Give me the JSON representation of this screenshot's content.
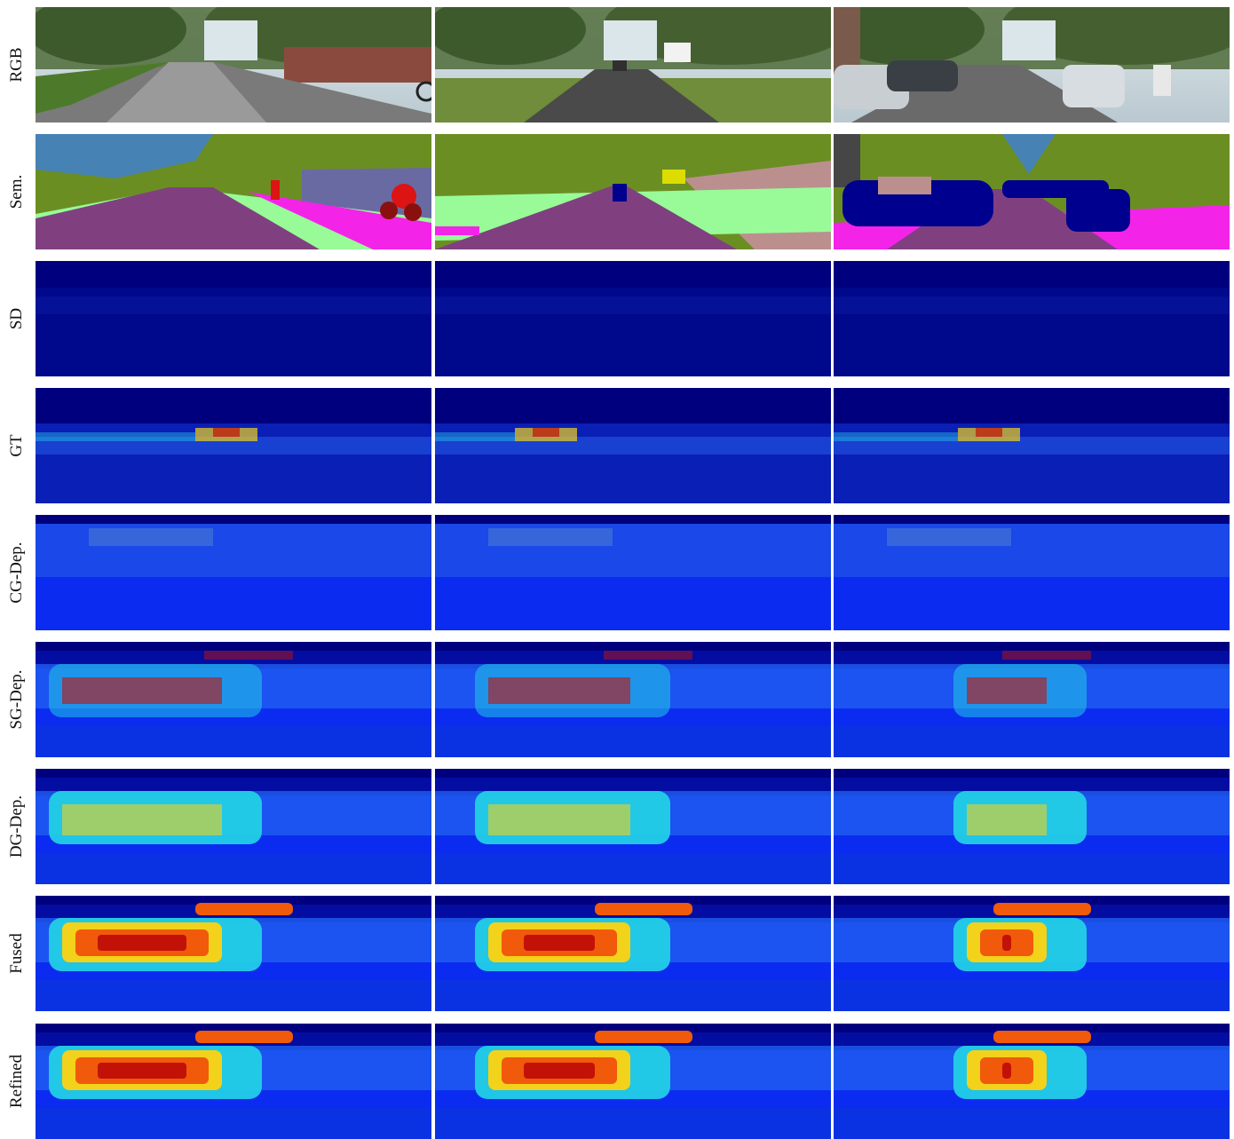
{
  "figure": {
    "rows": [
      {
        "id": "rgb",
        "label": "RGB",
        "kind": "rgb"
      },
      {
        "id": "sem",
        "label": "Sem.",
        "kind": "semantic"
      },
      {
        "id": "sd",
        "label": "SD",
        "kind": "sparse"
      },
      {
        "id": "gt",
        "label": "GT",
        "kind": "gt"
      },
      {
        "id": "cg",
        "label": "CG-Dep.",
        "kind": "depth-faint"
      },
      {
        "id": "sg",
        "label": "SG-Dep.",
        "kind": "depth-mid"
      },
      {
        "id": "dg",
        "label": "DG-Dep.",
        "kind": "depth-detail"
      },
      {
        "id": "fused",
        "label": "Fused",
        "kind": "depth-strong"
      },
      {
        "id": "refined",
        "label": "Refined",
        "kind": "depth-strong"
      }
    ],
    "columns": 3,
    "colors": {
      "depth_far": "#00007f",
      "depth_low": "#0b2cf0",
      "depth_mid": "#22d6e6",
      "depth_high": "#f2d21a",
      "depth_max": "#c21208",
      "sem_road": "#804080",
      "sem_sidewalk": "#f423e8",
      "sem_vegetation": "#6b8e23",
      "sem_terrain": "#98fb98",
      "sem_sky": "#4682b4",
      "sem_car": "#00008e",
      "sem_person": "#dc1414",
      "sem_building": "#464646",
      "sem_wall": "#bc8f8f",
      "sem_fence": "#6a6aa3",
      "sem_sign": "#dcdc00"
    }
  }
}
